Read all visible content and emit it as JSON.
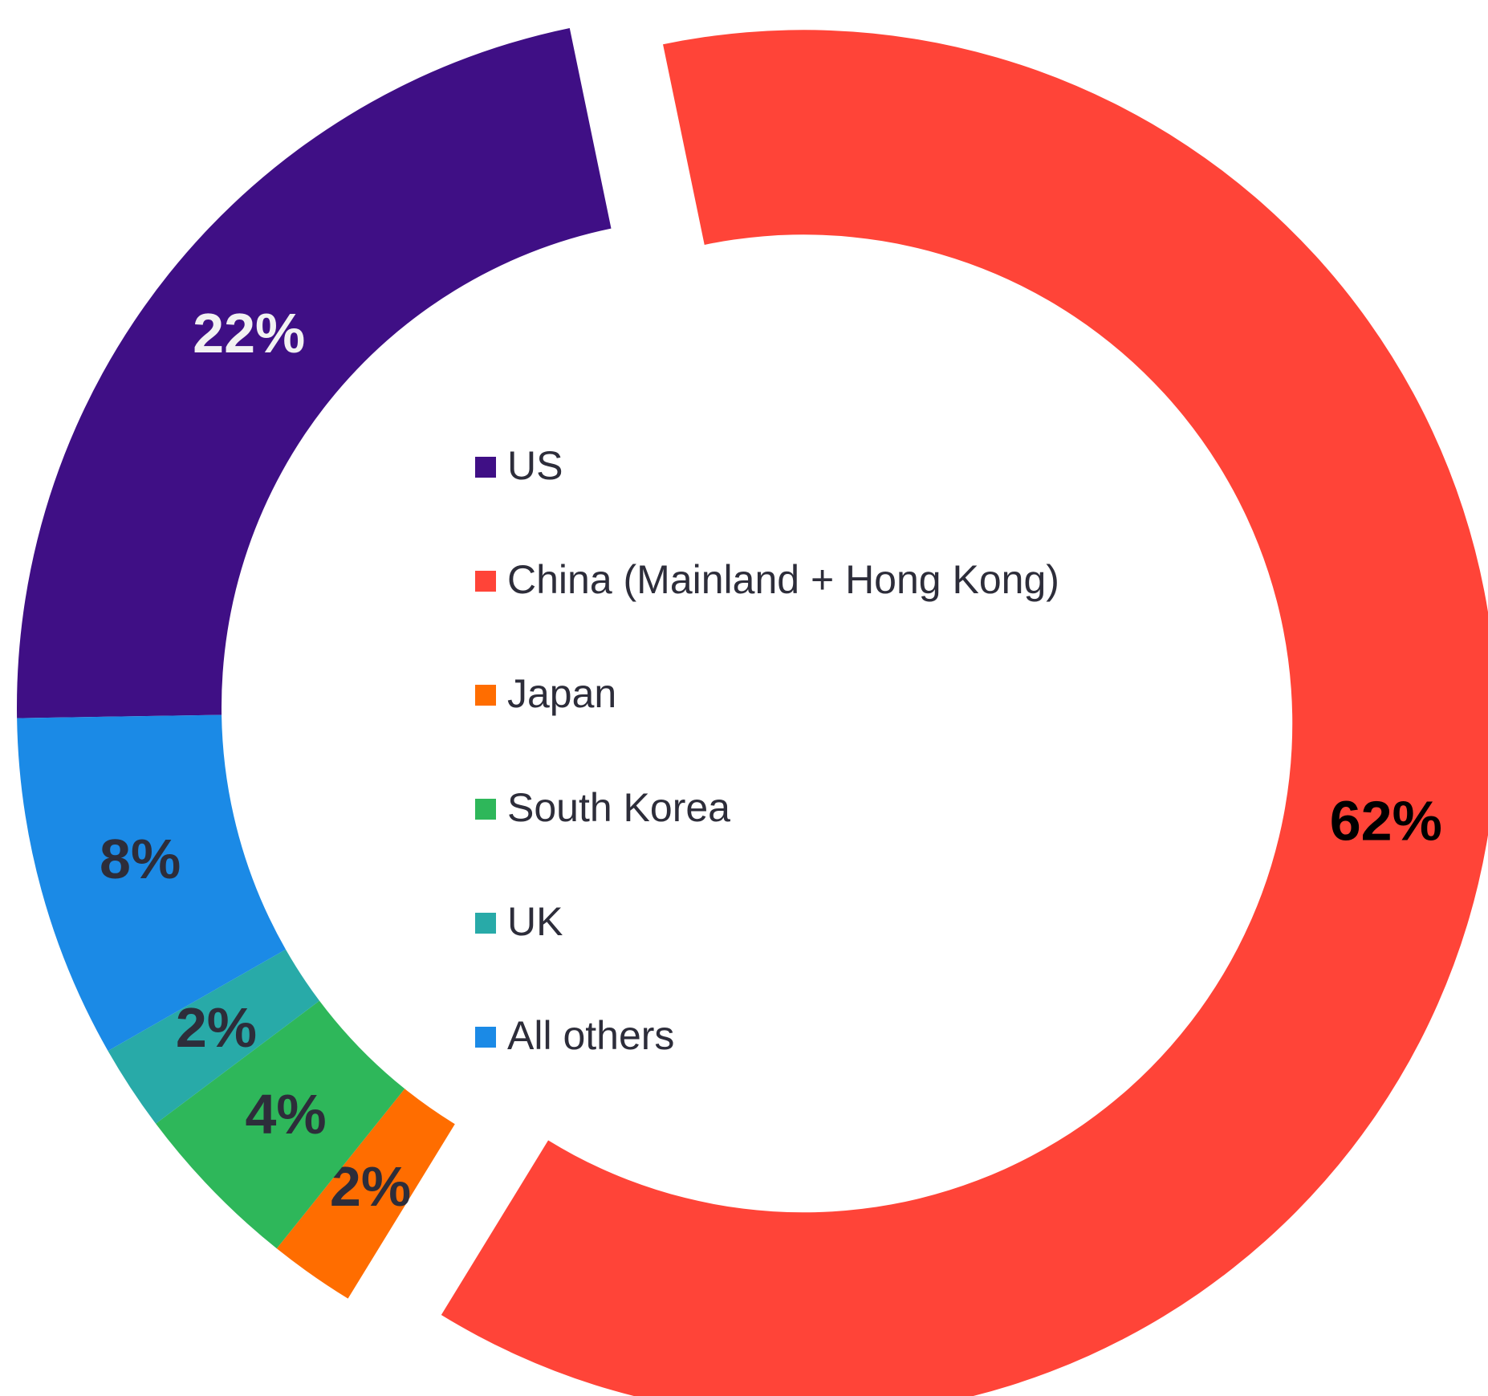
{
  "chart_data": {
    "type": "donut",
    "categories": [
      "US",
      "China (Mainland + Hong Kong)",
      "Japan",
      "South Korea",
      "UK",
      "All others"
    ],
    "values": [
      22,
      62,
      2,
      4,
      2,
      8
    ],
    "value_labels": [
      "22%",
      "62%",
      "2%",
      "4%",
      "2%",
      "8%"
    ],
    "colors": [
      "#3f0f85",
      "#ff4438",
      "#ff6d00",
      "#2eb75a",
      "#28aaa8",
      "#1b8ae6"
    ],
    "label_colors": [
      "#f2f2f2",
      "#000000",
      "#2d2d3a",
      "#2d2d3a",
      "#2d2d3a",
      "#2d2d3a"
    ],
    "legend": "center"
  }
}
